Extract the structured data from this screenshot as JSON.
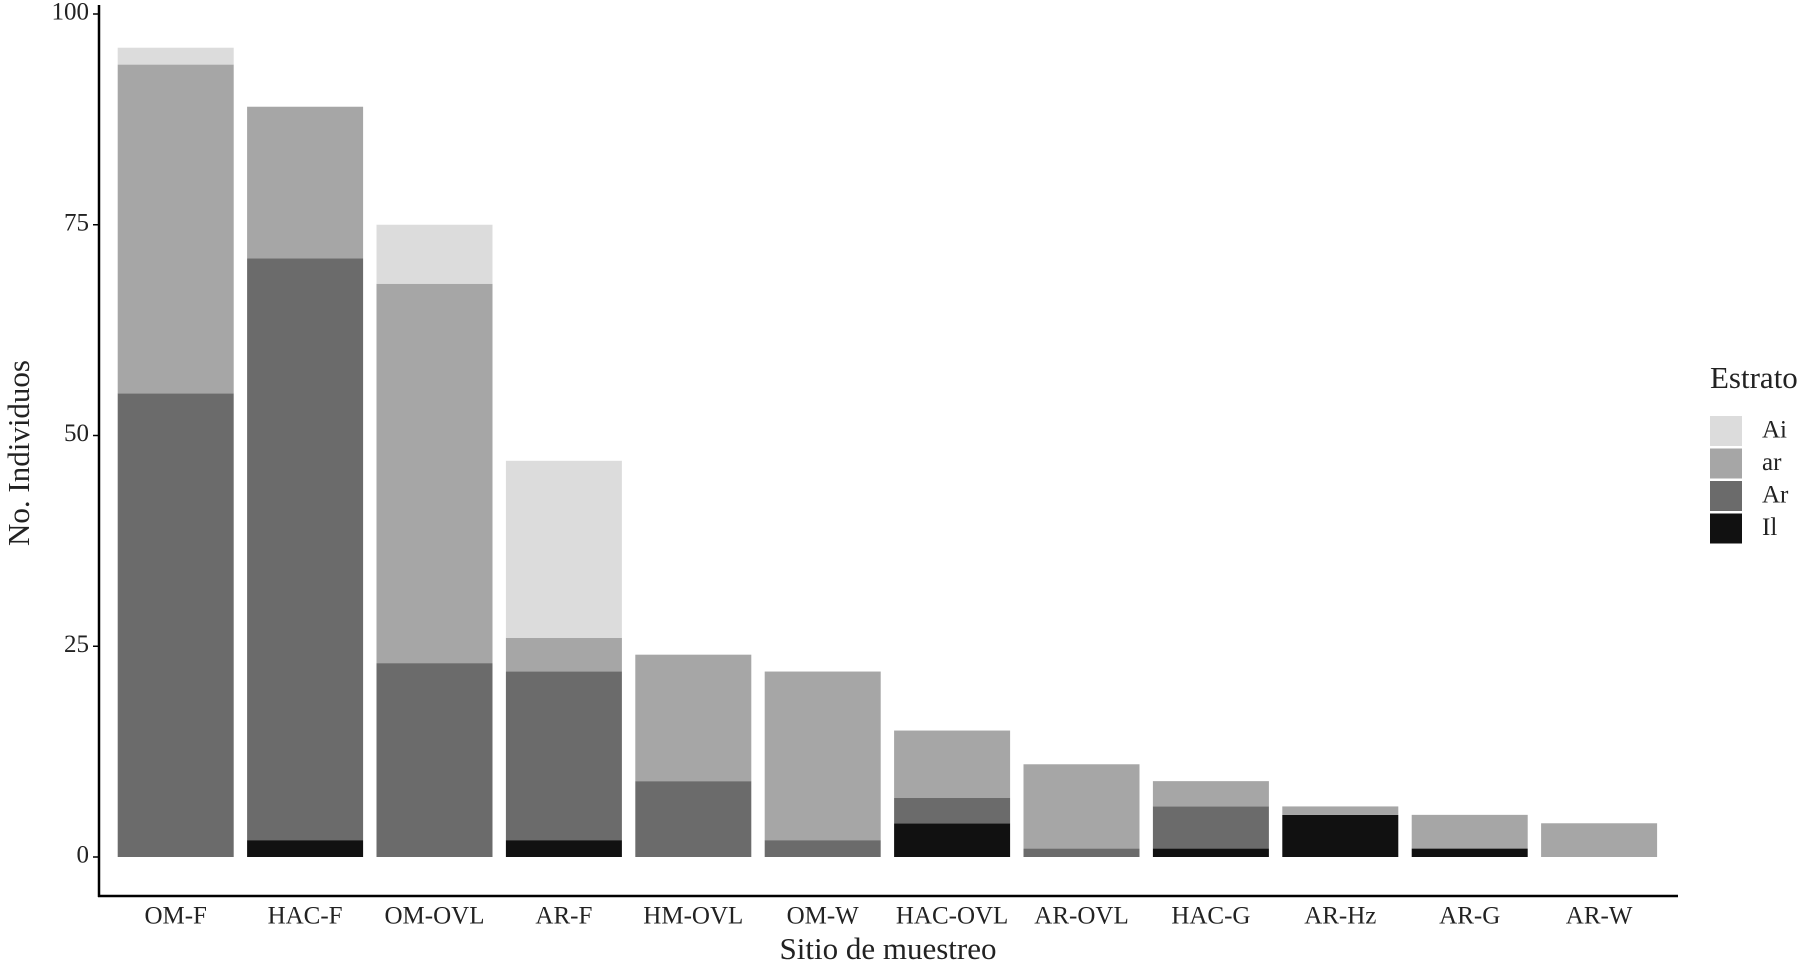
{
  "chart_data": {
    "type": "stacked-bar",
    "x_label": "Sitio de muestreo",
    "y_label": "No. Individuos",
    "categories": [
      "OM-F",
      "HAC-F",
      "OM-OVL",
      "AR-F",
      "HM-OVL",
      "OM-W",
      "HAC-OVL",
      "AR-OVL",
      "HAC-G",
      "AR-Hz",
      "AR-G",
      "AR-W"
    ],
    "legend_title": "Estrato",
    "series": [
      {
        "name": "Ai",
        "color": "#dcdcdc",
        "values": [
          2,
          0,
          7,
          21,
          0,
          0,
          0,
          0,
          0,
          0,
          0,
          0
        ]
      },
      {
        "name": "ar",
        "color": "#a6a6a6",
        "values": [
          39,
          18,
          45,
          4,
          15,
          20,
          8,
          10,
          3,
          1,
          4,
          4
        ]
      },
      {
        "name": "Ar",
        "color": "#6b6b6b",
        "values": [
          55,
          69,
          23,
          20,
          9,
          2,
          3,
          1,
          5,
          0,
          0,
          0
        ]
      },
      {
        "name": "Il",
        "color": "#111111",
        "values": [
          0,
          2,
          0,
          2,
          0,
          0,
          4,
          0,
          1,
          5,
          1,
          0
        ]
      }
    ],
    "ylim": [
      0,
      100
    ],
    "yticks": [
      0,
      25,
      50,
      75,
      100
    ],
    "grid": false,
    "legend": "right"
  }
}
